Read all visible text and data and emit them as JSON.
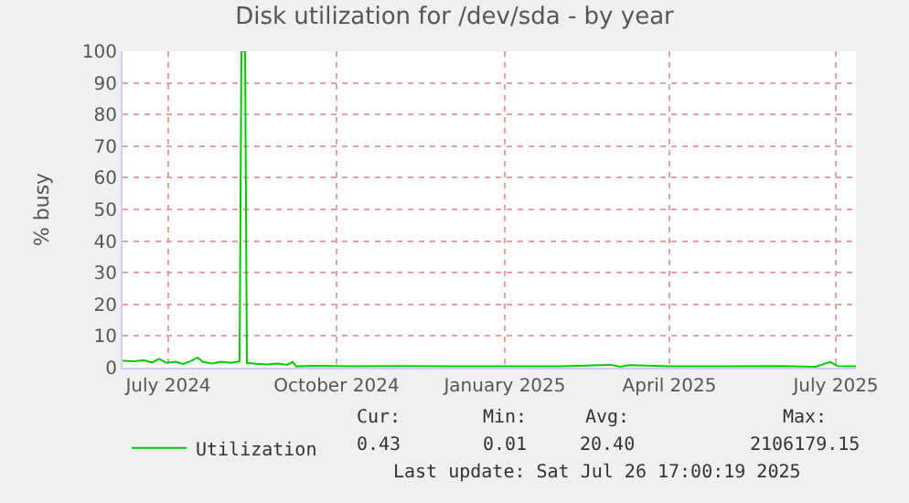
{
  "chart_data": {
    "type": "line",
    "title": "Disk utilization for /dev/sda - by year",
    "ylabel": "% busy",
    "x": [
      "2024-06-06",
      "2024-06-12",
      "2024-06-18",
      "2024-06-22",
      "2024-06-26",
      "2024-06-30",
      "2024-07-05",
      "2024-07-09",
      "2024-07-13",
      "2024-07-17",
      "2024-07-20",
      "2024-07-25",
      "2024-07-30",
      "2024-08-04",
      "2024-08-09",
      "2024-08-10",
      "2024-08-12",
      "2024-08-13",
      "2024-08-18",
      "2024-08-24",
      "2024-08-30",
      "2024-09-04",
      "2024-09-07",
      "2024-09-09",
      "2024-09-20",
      "2024-10-10",
      "2024-11-01",
      "2024-12-01",
      "2025-01-15",
      "2025-02-01",
      "2025-02-28",
      "2025-03-05",
      "2025-03-10",
      "2025-04-01",
      "2025-05-01",
      "2025-06-01",
      "2025-06-20",
      "2025-06-28",
      "2025-07-02",
      "2025-07-12"
    ],
    "series": [
      {
        "name": "Utilization",
        "color": "#00cc00",
        "values": [
          2.2,
          2.0,
          2.3,
          1.6,
          2.8,
          1.5,
          1.9,
          1.2,
          2.0,
          3.2,
          1.8,
          1.3,
          1.9,
          1.5,
          2.0,
          100,
          100,
          1.5,
          1.2,
          1.0,
          1.3,
          0.9,
          1.8,
          0.4,
          0.6,
          0.4,
          0.5,
          0.4,
          0.4,
          0.4,
          0.9,
          0.3,
          0.8,
          0.4,
          0.4,
          0.5,
          0.3,
          1.8,
          0.5,
          0.4
        ]
      }
    ],
    "xlim": [
      "2024-06-06",
      "2025-07-12"
    ],
    "xticks": [
      {
        "value": "2024-07-01",
        "label": "July 2024"
      },
      {
        "value": "2024-10-01",
        "label": "October 2024"
      },
      {
        "value": "2025-01-01",
        "label": "January 2025"
      },
      {
        "value": "2025-04-01",
        "label": "April 2025"
      },
      {
        "value": "2025-07-01",
        "label": "July 2025"
      }
    ],
    "ylim": [
      0,
      100
    ],
    "yticks": [
      0,
      10,
      20,
      30,
      40,
      50,
      60,
      70,
      80,
      90,
      100
    ],
    "grid": true,
    "legend": "bottom left",
    "marker": "none",
    "line_style": "solid",
    "annotations": [
      "Cur:",
      "Min:",
      "Avg:",
      "Max:",
      "0.43",
      "0.01",
      "20.40",
      "2106179.15",
      "Last update: Sat Jul 26 17:00:19 2025"
    ]
  }
}
